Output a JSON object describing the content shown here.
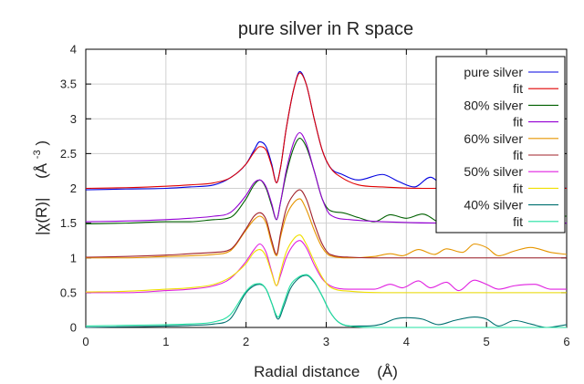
{
  "chart_data": {
    "type": "line",
    "title": "pure silver in R space",
    "xlabel": "Radial distance    (Å)",
    "ylabel_main": "|χ(R)|",
    "ylabel_unit_base": "(Å",
    "ylabel_unit_exp": "-3",
    "ylabel_unit_close": ")",
    "xlim": [
      0,
      6
    ],
    "ylim": [
      0,
      4
    ],
    "xticks": [
      0,
      1,
      2,
      3,
      4,
      5,
      6
    ],
    "yticks": [
      0,
      0.5,
      1,
      1.5,
      2,
      2.5,
      3,
      3.5,
      4
    ],
    "xtick_labels": [
      "0",
      "1",
      "2",
      "3",
      "4",
      "5",
      "6"
    ],
    "ytick_labels": [
      "0",
      "0.5",
      "1",
      "1.5",
      "2",
      "2.5",
      "3",
      "3.5",
      "4"
    ],
    "grid": true,
    "legend_position": "top-right",
    "series": [
      {
        "name": "pure silver",
        "color": "#0000e0",
        "points": [
          [
            0,
            1.98
          ],
          [
            0.5,
            1.99
          ],
          [
            1.0,
            2.0
          ],
          [
            1.3,
            2.02
          ],
          [
            1.6,
            2.05
          ],
          [
            1.8,
            2.15
          ],
          [
            2.0,
            2.35
          ],
          [
            2.1,
            2.55
          ],
          [
            2.17,
            2.67
          ],
          [
            2.25,
            2.6
          ],
          [
            2.32,
            2.35
          ],
          [
            2.38,
            2.08
          ],
          [
            2.43,
            2.3
          ],
          [
            2.5,
            2.85
          ],
          [
            2.6,
            3.45
          ],
          [
            2.67,
            3.68
          ],
          [
            2.75,
            3.5
          ],
          [
            2.85,
            3.0
          ],
          [
            2.95,
            2.55
          ],
          [
            3.05,
            2.3
          ],
          [
            3.2,
            2.2
          ],
          [
            3.4,
            2.12
          ],
          [
            3.7,
            2.2
          ],
          [
            3.9,
            2.1
          ],
          [
            4.1,
            2.02
          ],
          [
            4.3,
            2.16
          ],
          [
            4.5,
            2.0
          ],
          [
            4.65,
            2.12
          ],
          [
            4.85,
            2.05
          ],
          [
            5.0,
            2.18
          ],
          [
            5.2,
            2.0
          ],
          [
            5.4,
            2.1
          ],
          [
            5.6,
            2.0
          ],
          [
            5.8,
            2.04
          ],
          [
            6.0,
            2.0
          ]
        ]
      },
      {
        "name": "fit",
        "color": "#e00000",
        "points": [
          [
            0,
            2.0
          ],
          [
            0.5,
            2.01
          ],
          [
            1.0,
            2.03
          ],
          [
            1.3,
            2.05
          ],
          [
            1.6,
            2.08
          ],
          [
            1.8,
            2.15
          ],
          [
            2.0,
            2.35
          ],
          [
            2.1,
            2.52
          ],
          [
            2.17,
            2.6
          ],
          [
            2.25,
            2.55
          ],
          [
            2.32,
            2.32
          ],
          [
            2.38,
            2.08
          ],
          [
            2.43,
            2.3
          ],
          [
            2.5,
            2.85
          ],
          [
            2.6,
            3.45
          ],
          [
            2.67,
            3.66
          ],
          [
            2.75,
            3.5
          ],
          [
            2.85,
            3.0
          ],
          [
            2.95,
            2.55
          ],
          [
            3.05,
            2.3
          ],
          [
            3.2,
            2.15
          ],
          [
            3.4,
            2.05
          ],
          [
            3.7,
            2.02
          ],
          [
            4.2,
            2.0
          ],
          [
            5.0,
            2.01
          ],
          [
            6.0,
            2.0
          ]
        ]
      },
      {
        "name": "80% silver",
        "color": "#006000",
        "points": [
          [
            0,
            1.49
          ],
          [
            0.5,
            1.5
          ],
          [
            1.0,
            1.52
          ],
          [
            1.3,
            1.52
          ],
          [
            1.6,
            1.55
          ],
          [
            1.8,
            1.58
          ],
          [
            2.0,
            1.85
          ],
          [
            2.1,
            2.05
          ],
          [
            2.17,
            2.12
          ],
          [
            2.25,
            2.0
          ],
          [
            2.32,
            1.75
          ],
          [
            2.38,
            1.55
          ],
          [
            2.43,
            1.8
          ],
          [
            2.5,
            2.2
          ],
          [
            2.6,
            2.6
          ],
          [
            2.67,
            2.72
          ],
          [
            2.75,
            2.6
          ],
          [
            2.85,
            2.25
          ],
          [
            2.95,
            1.85
          ],
          [
            3.05,
            1.68
          ],
          [
            3.2,
            1.65
          ],
          [
            3.4,
            1.58
          ],
          [
            3.6,
            1.52
          ],
          [
            3.8,
            1.62
          ],
          [
            4.0,
            1.57
          ],
          [
            4.2,
            1.63
          ],
          [
            4.45,
            1.5
          ],
          [
            4.65,
            1.58
          ],
          [
            4.85,
            1.75
          ],
          [
            5.0,
            1.92
          ],
          [
            5.1,
            1.75
          ],
          [
            5.25,
            1.5
          ],
          [
            5.45,
            1.62
          ],
          [
            5.65,
            1.55
          ],
          [
            5.85,
            1.6
          ],
          [
            6.0,
            1.6
          ]
        ]
      },
      {
        "name": "fit",
        "color": "#9400d3",
        "points": [
          [
            0,
            1.52
          ],
          [
            0.5,
            1.53
          ],
          [
            1.0,
            1.55
          ],
          [
            1.3,
            1.57
          ],
          [
            1.6,
            1.6
          ],
          [
            1.8,
            1.65
          ],
          [
            2.0,
            1.9
          ],
          [
            2.1,
            2.08
          ],
          [
            2.17,
            2.12
          ],
          [
            2.25,
            2.02
          ],
          [
            2.32,
            1.78
          ],
          [
            2.38,
            1.55
          ],
          [
            2.43,
            1.8
          ],
          [
            2.5,
            2.25
          ],
          [
            2.6,
            2.68
          ],
          [
            2.67,
            2.8
          ],
          [
            2.75,
            2.65
          ],
          [
            2.85,
            2.25
          ],
          [
            2.95,
            1.85
          ],
          [
            3.05,
            1.62
          ],
          [
            3.3,
            1.55
          ],
          [
            3.7,
            1.52
          ],
          [
            4.5,
            1.5
          ],
          [
            6.0,
            1.5
          ]
        ]
      },
      {
        "name": "60% silver",
        "color": "#e69500",
        "points": [
          [
            0,
            1.0
          ],
          [
            0.5,
            1.0
          ],
          [
            1.0,
            1.02
          ],
          [
            1.3,
            1.03
          ],
          [
            1.6,
            1.05
          ],
          [
            1.8,
            1.1
          ],
          [
            2.0,
            1.4
          ],
          [
            2.1,
            1.55
          ],
          [
            2.17,
            1.6
          ],
          [
            2.25,
            1.5
          ],
          [
            2.32,
            1.2
          ],
          [
            2.38,
            1.03
          ],
          [
            2.43,
            1.3
          ],
          [
            2.5,
            1.6
          ],
          [
            2.6,
            1.8
          ],
          [
            2.67,
            1.85
          ],
          [
            2.75,
            1.7
          ],
          [
            2.85,
            1.4
          ],
          [
            2.95,
            1.15
          ],
          [
            3.05,
            1.03
          ],
          [
            3.3,
            1.0
          ],
          [
            3.6,
            1.02
          ],
          [
            3.8,
            1.06
          ],
          [
            3.95,
            1.03
          ],
          [
            4.15,
            1.12
          ],
          [
            4.35,
            1.05
          ],
          [
            4.5,
            1.13
          ],
          [
            4.7,
            1.08
          ],
          [
            4.85,
            1.2
          ],
          [
            5.0,
            1.15
          ],
          [
            5.15,
            1.03
          ],
          [
            5.35,
            1.1
          ],
          [
            5.55,
            1.15
          ],
          [
            5.8,
            1.08
          ],
          [
            6.0,
            1.05
          ]
        ]
      },
      {
        "name": "fit",
        "color": "#a0202a",
        "points": [
          [
            0,
            1.01
          ],
          [
            0.5,
            1.02
          ],
          [
            1.0,
            1.04
          ],
          [
            1.3,
            1.06
          ],
          [
            1.6,
            1.08
          ],
          [
            1.8,
            1.12
          ],
          [
            2.0,
            1.42
          ],
          [
            2.1,
            1.6
          ],
          [
            2.17,
            1.65
          ],
          [
            2.25,
            1.55
          ],
          [
            2.32,
            1.25
          ],
          [
            2.38,
            1.05
          ],
          [
            2.43,
            1.35
          ],
          [
            2.5,
            1.7
          ],
          [
            2.6,
            1.92
          ],
          [
            2.67,
            1.98
          ],
          [
            2.75,
            1.85
          ],
          [
            2.85,
            1.5
          ],
          [
            2.95,
            1.2
          ],
          [
            3.05,
            1.05
          ],
          [
            3.3,
            1.01
          ],
          [
            3.7,
            1.0
          ],
          [
            6.0,
            1.0
          ]
        ]
      },
      {
        "name": "50% silver",
        "color": "#e020e0",
        "points": [
          [
            0,
            0.5
          ],
          [
            0.5,
            0.5
          ],
          [
            1.0,
            0.53
          ],
          [
            1.3,
            0.55
          ],
          [
            1.6,
            0.6
          ],
          [
            1.8,
            0.7
          ],
          [
            2.0,
            0.95
          ],
          [
            2.1,
            1.12
          ],
          [
            2.17,
            1.2
          ],
          [
            2.25,
            1.08
          ],
          [
            2.32,
            0.8
          ],
          [
            2.38,
            0.6
          ],
          [
            2.43,
            0.75
          ],
          [
            2.5,
            1.0
          ],
          [
            2.6,
            1.2
          ],
          [
            2.67,
            1.25
          ],
          [
            2.75,
            1.15
          ],
          [
            2.85,
            0.9
          ],
          [
            2.95,
            0.7
          ],
          [
            3.05,
            0.6
          ],
          [
            3.3,
            0.55
          ],
          [
            3.6,
            0.55
          ],
          [
            3.8,
            0.62
          ],
          [
            3.95,
            0.57
          ],
          [
            4.15,
            0.67
          ],
          [
            4.3,
            0.57
          ],
          [
            4.5,
            0.65
          ],
          [
            4.65,
            0.53
          ],
          [
            4.85,
            0.68
          ],
          [
            5.0,
            0.62
          ],
          [
            5.15,
            0.55
          ],
          [
            5.35,
            0.6
          ],
          [
            5.6,
            0.62
          ],
          [
            5.8,
            0.55
          ],
          [
            6.0,
            0.55
          ]
        ]
      },
      {
        "name": "fit",
        "color": "#f0e000",
        "points": [
          [
            0,
            0.51
          ],
          [
            0.5,
            0.52
          ],
          [
            1.0,
            0.55
          ],
          [
            1.3,
            0.57
          ],
          [
            1.6,
            0.62
          ],
          [
            1.8,
            0.72
          ],
          [
            2.0,
            0.92
          ],
          [
            2.1,
            1.08
          ],
          [
            2.17,
            1.12
          ],
          [
            2.25,
            1.02
          ],
          [
            2.32,
            0.78
          ],
          [
            2.38,
            0.6
          ],
          [
            2.43,
            0.8
          ],
          [
            2.5,
            1.08
          ],
          [
            2.6,
            1.28
          ],
          [
            2.67,
            1.33
          ],
          [
            2.75,
            1.2
          ],
          [
            2.85,
            0.95
          ],
          [
            2.95,
            0.72
          ],
          [
            3.05,
            0.58
          ],
          [
            3.3,
            0.52
          ],
          [
            3.7,
            0.5
          ],
          [
            6.0,
            0.5
          ]
        ]
      },
      {
        "name": "40% silver",
        "color": "#007070",
        "points": [
          [
            0,
            0.0
          ],
          [
            0.5,
            0.01
          ],
          [
            1.0,
            0.02
          ],
          [
            1.3,
            0.03
          ],
          [
            1.6,
            0.05
          ],
          [
            1.8,
            0.12
          ],
          [
            2.0,
            0.5
          ],
          [
            2.1,
            0.6
          ],
          [
            2.17,
            0.62
          ],
          [
            2.25,
            0.55
          ],
          [
            2.32,
            0.35
          ],
          [
            2.4,
            0.12
          ],
          [
            2.47,
            0.3
          ],
          [
            2.55,
            0.55
          ],
          [
            2.65,
            0.7
          ],
          [
            2.75,
            0.75
          ],
          [
            2.85,
            0.65
          ],
          [
            2.95,
            0.45
          ],
          [
            3.05,
            0.22
          ],
          [
            3.15,
            0.08
          ],
          [
            3.3,
            0.02
          ],
          [
            3.5,
            0.02
          ],
          [
            3.7,
            0.05
          ],
          [
            3.85,
            0.12
          ],
          [
            4.0,
            0.14
          ],
          [
            4.2,
            0.12
          ],
          [
            4.4,
            0.04
          ],
          [
            4.6,
            0.1
          ],
          [
            4.85,
            0.15
          ],
          [
            5.0,
            0.12
          ],
          [
            5.15,
            0.02
          ],
          [
            5.35,
            0.1
          ],
          [
            5.55,
            0.05
          ],
          [
            5.75,
            0.0
          ],
          [
            6.0,
            0.04
          ]
        ]
      },
      {
        "name": "fit",
        "color": "#20e0a0",
        "points": [
          [
            0,
            0.02
          ],
          [
            0.5,
            0.03
          ],
          [
            1.0,
            0.04
          ],
          [
            1.3,
            0.05
          ],
          [
            1.6,
            0.08
          ],
          [
            1.8,
            0.18
          ],
          [
            2.0,
            0.52
          ],
          [
            2.1,
            0.62
          ],
          [
            2.17,
            0.63
          ],
          [
            2.25,
            0.55
          ],
          [
            2.32,
            0.35
          ],
          [
            2.4,
            0.15
          ],
          [
            2.47,
            0.35
          ],
          [
            2.55,
            0.6
          ],
          [
            2.65,
            0.72
          ],
          [
            2.75,
            0.76
          ],
          [
            2.85,
            0.66
          ],
          [
            2.95,
            0.45
          ],
          [
            3.05,
            0.22
          ],
          [
            3.15,
            0.08
          ],
          [
            3.3,
            0.02
          ],
          [
            3.6,
            0.0
          ],
          [
            6.0,
            0.0
          ]
        ]
      }
    ]
  }
}
